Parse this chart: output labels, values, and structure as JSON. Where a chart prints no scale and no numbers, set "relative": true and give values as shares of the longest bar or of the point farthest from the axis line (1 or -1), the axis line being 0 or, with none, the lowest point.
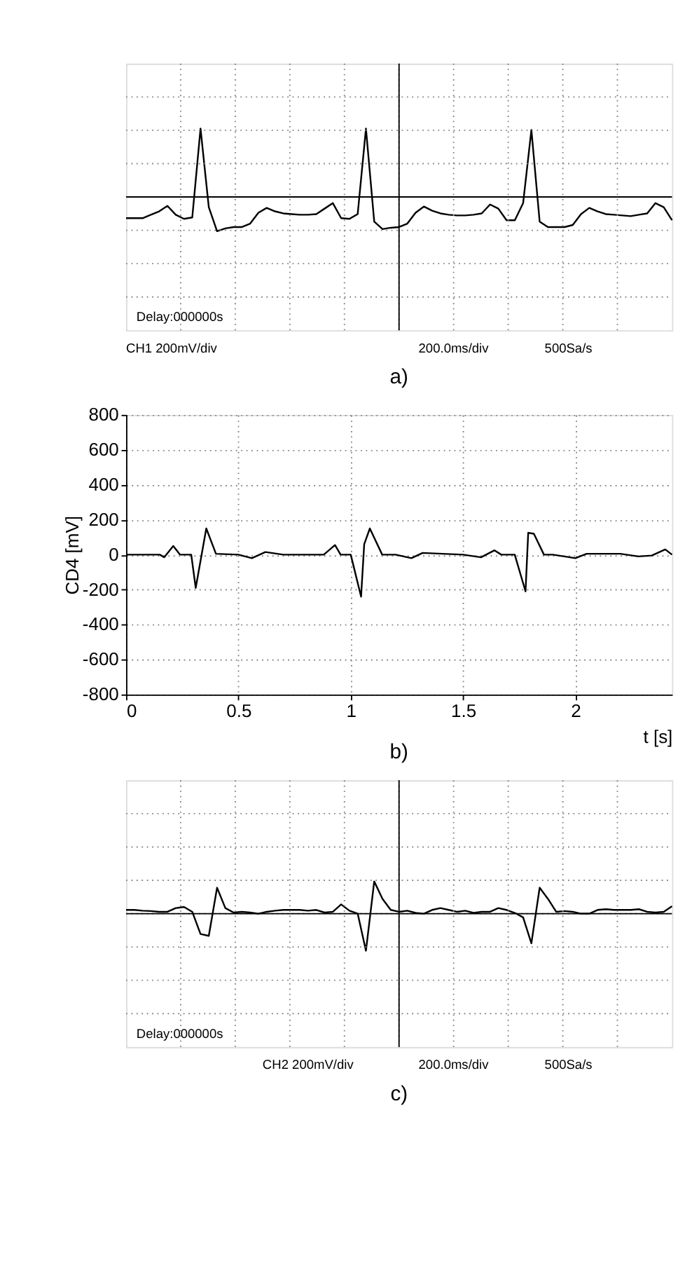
{
  "chart_data": [
    {
      "type": "line",
      "relative": true,
      "grid": true,
      "categories": [
        null,
        null,
        null,
        null,
        null,
        null,
        null,
        null,
        null,
        null,
        null,
        null,
        null,
        null,
        null,
        null,
        null,
        null,
        null,
        null,
        null,
        null,
        null,
        null,
        null,
        null,
        null,
        null,
        null,
        null,
        null,
        null,
        null,
        null,
        null,
        null,
        null,
        null,
        null,
        null,
        null,
        null,
        null,
        null,
        null,
        null,
        null,
        null,
        null,
        null,
        null,
        null,
        null,
        null,
        null,
        null,
        null,
        null,
        null,
        null,
        null,
        null,
        null,
        null,
        null,
        null,
        null
      ],
      "series": [
        {
          "color": "#000000",
          "values": [
            -0.31,
            -0.31,
            -0.31,
            -0.26,
            -0.21,
            -0.13,
            -0.26,
            -0.32,
            -0.3,
            1.0,
            -0.15,
            -0.5,
            -0.46,
            -0.44,
            -0.44,
            -0.39,
            -0.23,
            -0.16,
            -0.21,
            -0.24,
            -0.25,
            -0.26,
            -0.26,
            -0.25,
            -0.17,
            -0.09,
            -0.31,
            -0.32,
            -0.25,
            1.0,
            -0.36,
            -0.47,
            -0.45,
            -0.44,
            -0.39,
            -0.23,
            -0.14,
            -0.2,
            -0.24,
            -0.26,
            -0.27,
            -0.27,
            -0.26,
            -0.24,
            -0.11,
            -0.17,
            -0.34,
            -0.34,
            -0.09,
            0.98,
            -0.36,
            -0.44,
            -0.44,
            -0.44,
            -0.41,
            -0.25,
            -0.16,
            -0.21,
            -0.25,
            -0.26,
            -0.27,
            -0.28,
            -0.26,
            -0.24,
            -0.09,
            -0.15,
            -0.34
          ]
        }
      ],
      "annotations": [
        "Delay:000000s",
        "CH1 200mV/div",
        "200.0ms/div",
        "500Sa/s",
        "a)"
      ]
    },
    {
      "type": "line",
      "grid": true,
      "xlabel": "t [s]",
      "ylabel": "CD4 [mV]",
      "xlim": [
        0,
        2.43
      ],
      "xticks": [
        0,
        0.5,
        1,
        1.5,
        2
      ],
      "ylim": [
        -800,
        800
      ],
      "yticks": [
        -800,
        -600,
        -400,
        -200,
        0,
        200,
        400,
        600,
        800
      ],
      "x": [
        0,
        0.15,
        0.17,
        0.21,
        0.24,
        0.29,
        0.31,
        0.357,
        0.4,
        0.5,
        0.56,
        0.62,
        0.7,
        0.88,
        0.93,
        0.955,
        1.0,
        1.046,
        1.06,
        1.085,
        1.14,
        1.2,
        1.27,
        1.32,
        1.5,
        1.58,
        1.64,
        1.67,
        1.73,
        1.778,
        1.79,
        1.815,
        1.86,
        1.9,
        2.0,
        2.05,
        2.2,
        2.28,
        2.34,
        2.4,
        2.43
      ],
      "series": [
        {
          "color": "#000000",
          "values": [
            0,
            0,
            -15,
            50,
            0,
            0,
            -190,
            150,
            5,
            0,
            -20,
            15,
            0,
            0,
            55,
            0,
            0,
            -240,
            60,
            150,
            0,
            0,
            -20,
            10,
            0,
            -15,
            25,
            0,
            0,
            -210,
            125,
            120,
            0,
            0,
            -20,
            5,
            5,
            -10,
            -5,
            30,
            0
          ]
        }
      ],
      "annotations": [
        "b)"
      ]
    },
    {
      "type": "line",
      "relative": true,
      "grid": true,
      "categories": [
        null,
        null,
        null,
        null,
        null,
        null,
        null,
        null,
        null,
        null,
        null,
        null,
        null,
        null,
        null,
        null,
        null,
        null,
        null,
        null,
        null,
        null,
        null,
        null,
        null,
        null,
        null,
        null,
        null,
        null,
        null,
        null,
        null,
        null,
        null,
        null,
        null,
        null,
        null,
        null,
        null,
        null,
        null,
        null,
        null,
        null,
        null,
        null,
        null,
        null,
        null,
        null,
        null,
        null,
        null,
        null,
        null,
        null,
        null,
        null,
        null,
        null,
        null,
        null,
        null,
        null,
        null
      ],
      "series": [
        {
          "color": "#000000",
          "values": [
            0.1,
            0.1,
            0.08,
            0.07,
            0.05,
            0.05,
            0.15,
            0.18,
            0.05,
            -0.55,
            -0.6,
            0.7,
            0.15,
            0.03,
            0.05,
            0.03,
            0.0,
            0.05,
            0.08,
            0.1,
            0.1,
            0.1,
            0.08,
            0.1,
            0.03,
            0.05,
            0.25,
            0.08,
            0.0,
            -1.0,
            0.87,
            0.4,
            0.1,
            0.05,
            0.08,
            0.02,
            0.0,
            0.1,
            0.15,
            0.1,
            0.05,
            0.08,
            0.02,
            0.05,
            0.05,
            0.15,
            0.1,
            0.02,
            -0.1,
            -0.8,
            0.7,
            0.4,
            0.05,
            0.07,
            0.05,
            0.0,
            0.0,
            0.1,
            0.12,
            0.1,
            0.1,
            0.1,
            0.12,
            0.05,
            0.03,
            0.05,
            0.2
          ]
        }
      ],
      "annotations": [
        "Delay:000000s",
        "CH2 200mV/div",
        "200.0ms/div",
        "500Sa/s",
        "c)"
      ]
    }
  ]
}
